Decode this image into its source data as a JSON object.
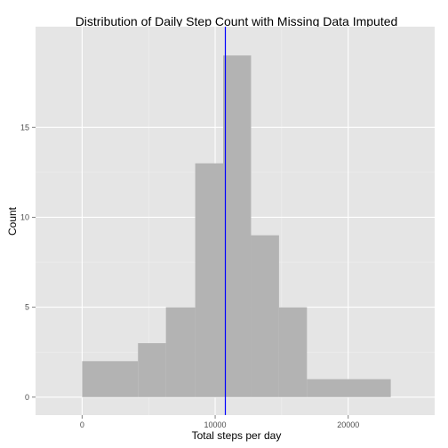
{
  "chart_data": {
    "type": "histogram",
    "title": "Distribution of Daily Step Count with Missing Data Imputed",
    "xlabel": "Total steps per day",
    "ylabel": "Count",
    "xlim": [
      -3500,
      26500
    ],
    "ylim": [
      -1,
      20.6
    ],
    "x_ticks": [
      {
        "value": 0,
        "label": "0"
      },
      {
        "value": 10000,
        "label": "10000"
      },
      {
        "value": 20000,
        "label": "20000"
      }
    ],
    "y_ticks": [
      {
        "value": 0,
        "label": "0"
      },
      {
        "value": 5,
        "label": "5"
      },
      {
        "value": 10,
        "label": "10"
      },
      {
        "value": 15,
        "label": "15"
      }
    ],
    "bins": [
      {
        "start": 0,
        "end": 4200,
        "count": 2
      },
      {
        "start": 4200,
        "end": 6300,
        "count": 3
      },
      {
        "start": 6300,
        "end": 8500,
        "count": 5
      },
      {
        "start": 8500,
        "end": 10600,
        "count": 13
      },
      {
        "start": 10600,
        "end": 12700,
        "count": 19
      },
      {
        "start": 12700,
        "end": 14800,
        "count": 9
      },
      {
        "start": 14800,
        "end": 16900,
        "count": 5
      },
      {
        "start": 16900,
        "end": 23200,
        "count": 1
      }
    ],
    "reference_line": {
      "x": 10766,
      "color": "#0000ff"
    },
    "grid": true,
    "colors": {
      "panel_background": "#e5e5e5",
      "grid_major": "#ffffff",
      "grid_minor": "#f2f2f2",
      "bar_fill": "#b3b3b3"
    }
  }
}
